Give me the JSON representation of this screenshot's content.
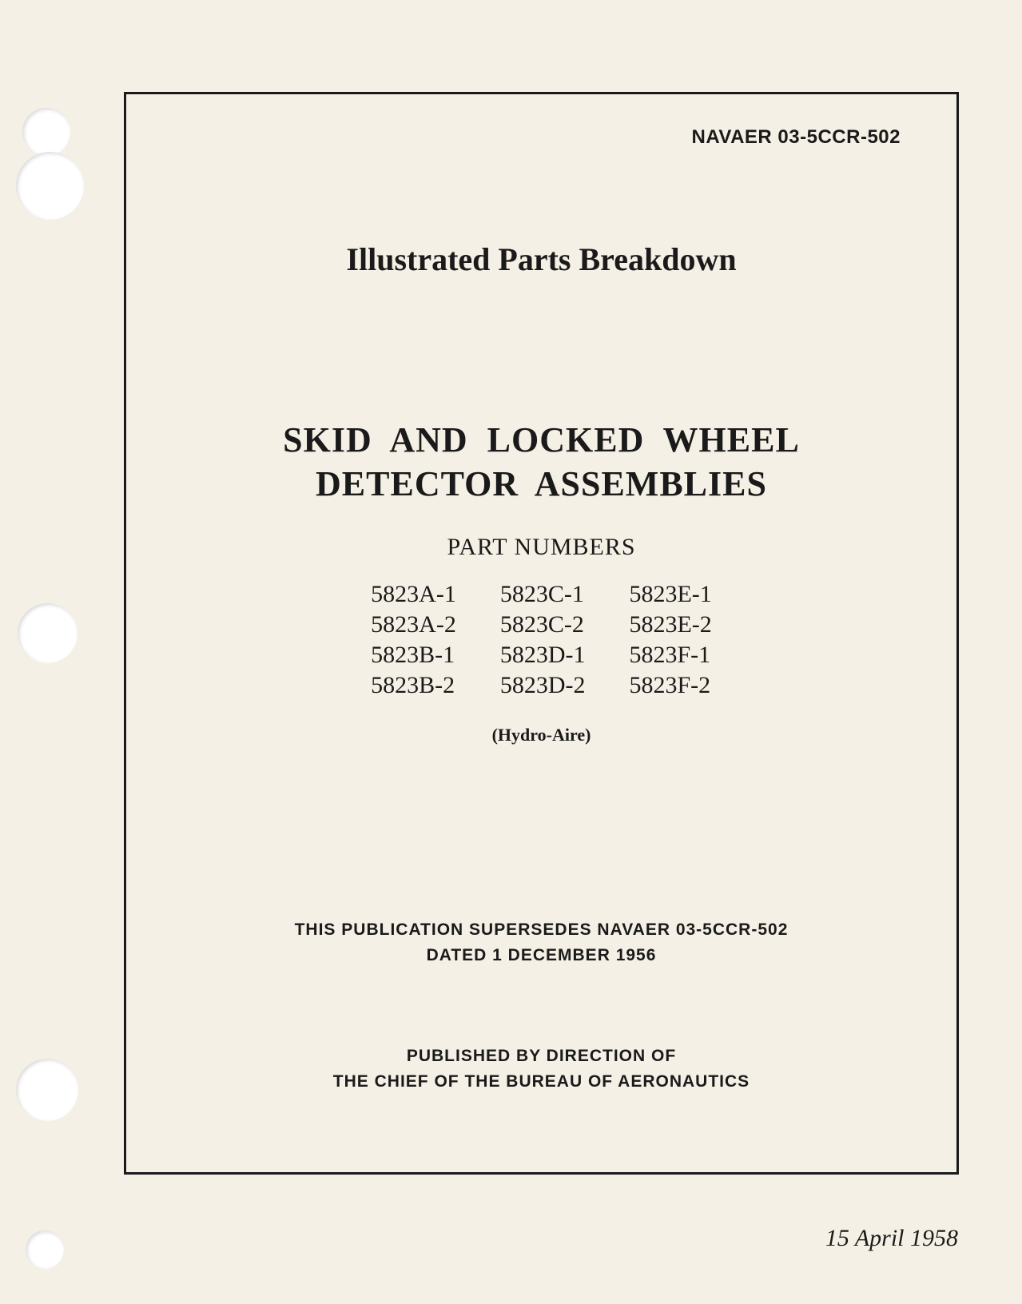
{
  "document": {
    "doc_number": "NAVAER 03-5CCR-502",
    "section_title": "Illustrated Parts Breakdown",
    "main_title_line1": "SKID AND LOCKED WHEEL",
    "main_title_line2": "DETECTOR ASSEMBLIES",
    "part_numbers_label": "PART NUMBERS",
    "part_numbers": {
      "col1": [
        "5823A-1",
        "5823A-2",
        "5823B-1",
        "5823B-2"
      ],
      "col2": [
        "5823C-1",
        "5823C-2",
        "5823D-1",
        "5823D-2"
      ],
      "col3": [
        "5823E-1",
        "5823E-2",
        "5823F-1",
        "5823F-2"
      ]
    },
    "manufacturer": "(Hydro-Aire)",
    "supersedes_line1": "THIS PUBLICATION SUPERSEDES NAVAER 03-5CCR-502",
    "supersedes_line2": "DATED 1 DECEMBER 1956",
    "published_line1": "PUBLISHED BY DIRECTION OF",
    "published_line2": "THE CHIEF OF THE BUREAU OF AERONAUTICS",
    "date": "15 April 1958"
  },
  "colors": {
    "page_background": "#f5f0e5",
    "text": "#1a1a1a",
    "border": "#1a1a1a",
    "hole": "#ffffff"
  }
}
